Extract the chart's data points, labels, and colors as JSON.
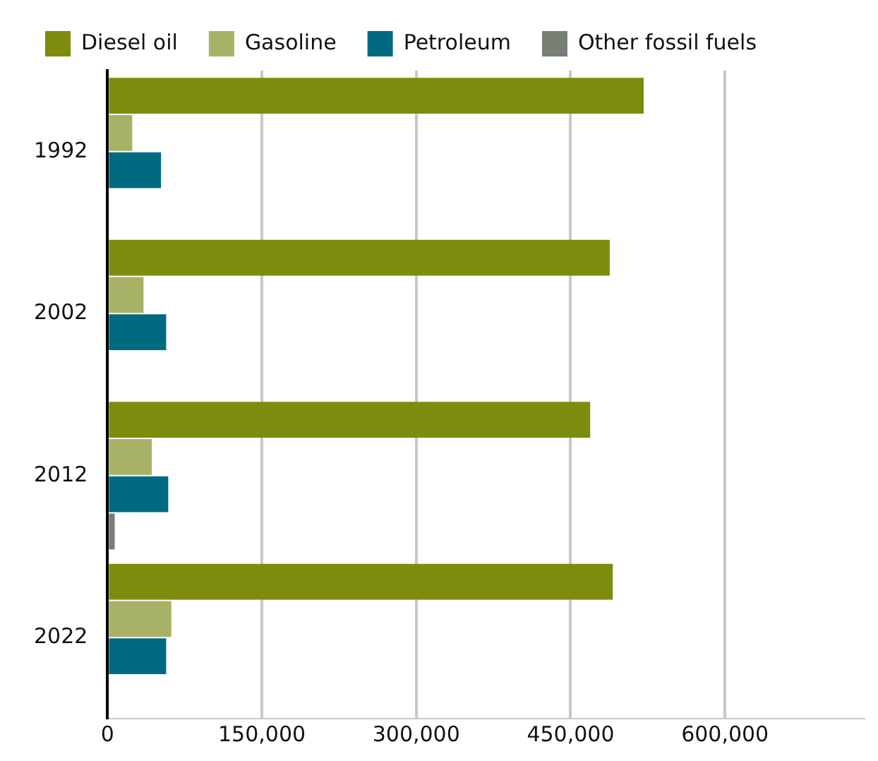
{
  "chart_data": {
    "type": "bar",
    "orientation": "horizontal",
    "categories": [
      "1992",
      "2002",
      "2012",
      "2022"
    ],
    "series": [
      {
        "name": "Diesel oil",
        "color": "#7d8c0c",
        "values": [
          521000,
          488000,
          469000,
          491000
        ]
      },
      {
        "name": "Gasoline",
        "color": "#a8b266",
        "values": [
          24000,
          35000,
          43000,
          62000
        ]
      },
      {
        "name": "Petroleum",
        "color": "#006b80",
        "values": [
          52000,
          57000,
          59000,
          57000
        ]
      },
      {
        "name": "Other fossil fuels",
        "color": "#777e74",
        "values": [
          null,
          null,
          7000,
          null
        ]
      }
    ],
    "xlim": [
      0,
      735000
    ],
    "xticks": [
      {
        "value": 0,
        "label": "0"
      },
      {
        "value": 150000,
        "label": "150,000"
      },
      {
        "value": 300000,
        "label": "300,000"
      },
      {
        "value": 450000,
        "label": "450,000"
      },
      {
        "value": 600000,
        "label": "600,000"
      }
    ],
    "grid": "x",
    "legend": "top left"
  }
}
